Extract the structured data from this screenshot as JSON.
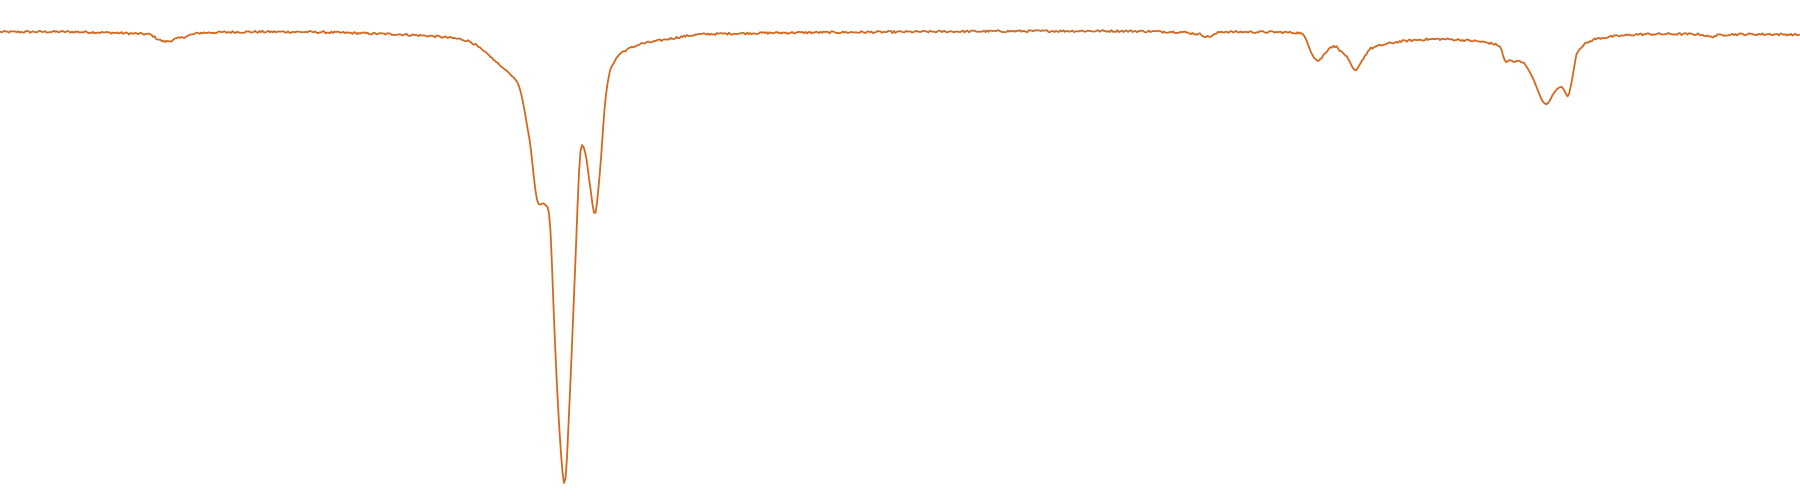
{
  "chart_data": {
    "type": "line",
    "title": "",
    "xlabel": "",
    "ylabel": "",
    "grid": false,
    "legend": "none",
    "xlim": [
      0,
      1800
    ],
    "ylim": [
      0,
      1.0
    ],
    "series": [
      {
        "color": "#D2691E",
        "noise": 0.0045,
        "x": [
          0,
          80,
          150,
          158,
          165,
          175,
          200,
          300,
          400,
          440,
          470,
          490,
          500,
          510,
          520,
          530,
          537,
          545,
          550,
          555,
          560,
          565,
          570,
          575,
          580,
          585,
          590,
          595,
          600,
          605,
          610,
          620,
          640,
          700,
          900,
          1100,
          1180,
          1200,
          1208,
          1215,
          1220,
          1230,
          1300,
          1306,
          1312,
          1318,
          1325,
          1330,
          1338,
          1340,
          1346,
          1352,
          1356,
          1360,
          1370,
          1400,
          1440,
          1480,
          1500,
          1505,
          1510,
          1515,
          1520,
          1530,
          1545,
          1555,
          1560,
          1562,
          1565,
          1568,
          1570,
          1572,
          1576,
          1580,
          1585,
          1595,
          1610,
          1640,
          1700,
          1710,
          1718,
          1730,
          1780,
          1800
        ],
        "y": [
          0.95,
          0.95,
          0.945,
          0.935,
          0.93,
          0.935,
          0.948,
          0.95,
          0.945,
          0.94,
          0.93,
          0.9,
          0.88,
          0.862,
          0.83,
          0.72,
          0.6,
          0.59,
          0.55,
          0.3,
          0.1,
          0.01,
          0.2,
          0.45,
          0.69,
          0.7,
          0.63,
          0.57,
          0.66,
          0.8,
          0.87,
          0.905,
          0.925,
          0.945,
          0.95,
          0.952,
          0.95,
          0.945,
          0.94,
          0.945,
          0.95,
          0.95,
          0.948,
          0.935,
          0.905,
          0.89,
          0.905,
          0.918,
          0.918,
          0.91,
          0.9,
          0.878,
          0.87,
          0.885,
          0.915,
          0.93,
          0.935,
          0.93,
          0.92,
          0.89,
          0.89,
          0.887,
          0.89,
          0.865,
          0.8,
          0.825,
          0.835,
          0.835,
          0.825,
          0.815,
          0.83,
          0.85,
          0.9,
          0.916,
          0.925,
          0.935,
          0.94,
          0.945,
          0.945,
          0.94,
          0.943,
          0.945,
          0.945,
          0.944
        ]
      }
    ]
  }
}
